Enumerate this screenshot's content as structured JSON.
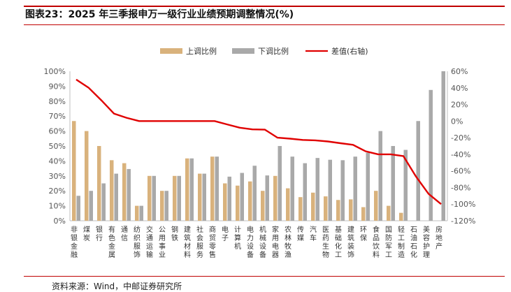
{
  "figure": {
    "title": "图表23：2025 年三季报申万一级行业业绩预期调整情况(%)",
    "source": "资料来源：Wind，中邮证券研究所"
  },
  "chart_data": {
    "type": "bar",
    "legend": {
      "placement": "top-center",
      "items": [
        "上调比例",
        "下调比例",
        "差值(右轴)"
      ]
    },
    "categories": [
      "非银金融",
      "煤炭",
      "银行",
      "有色金属",
      "通信",
      "纺织服饰",
      "交通运输",
      "公用事业",
      "钢铁",
      "建筑材料",
      "社会服务",
      "商贸零售",
      "电子",
      "计算机",
      "电力设备",
      "机械设备",
      "家用电器",
      "农林牧渔",
      "传媒",
      "汽车",
      "医药生物",
      "基础化工",
      "建筑装饰",
      "环保",
      "食品饮料",
      "国防军工",
      "轻工制造",
      "石油石化",
      "美容护理",
      "房地产"
    ],
    "series": [
      {
        "name": "上调比例",
        "axis": "left",
        "color": "#d9b27c",
        "values": [
          66.7,
          60,
          50,
          40.5,
          38.5,
          10,
          30,
          20,
          30,
          41.7,
          31.5,
          42.9,
          25,
          23.5,
          26.3,
          20,
          30,
          21.7,
          15.8,
          18.8,
          16.3,
          13.9,
          14.3,
          9.1,
          20,
          10,
          5.3,
          0,
          0,
          0
        ]
      },
      {
        "name": "下调比例",
        "axis": "left",
        "color": "#a9a9a9",
        "values": [
          16.7,
          20,
          25,
          31.5,
          34.6,
          10,
          30,
          20,
          30,
          41.7,
          31.5,
          42.9,
          29.5,
          32,
          36.8,
          30.3,
          50,
          42.9,
          38.5,
          42,
          40.8,
          40.5,
          42.9,
          45.5,
          60,
          50,
          47.4,
          66.7,
          87.5,
          100
        ]
      },
      {
        "name": "差值(右轴)",
        "axis": "right",
        "color": "#e00000",
        "type": "line",
        "values": [
          50,
          40,
          25,
          9,
          4,
          0,
          0,
          0,
          0,
          0,
          0,
          0,
          -4,
          -8,
          -10,
          -10.3,
          -20,
          -21.2,
          -22.7,
          -23.2,
          -24.5,
          -26.6,
          -28.6,
          -36.4,
          -40,
          -40,
          -42.1,
          -66.7,
          -87.5,
          -100
        ]
      }
    ],
    "ylim_left": [
      0,
      100
    ],
    "yticks_left": [
      "0%",
      "10%",
      "20%",
      "30%",
      "40%",
      "50%",
      "60%",
      "70%",
      "80%",
      "90%",
      "100%"
    ],
    "ylim_right": [
      -120,
      60
    ],
    "yticks_right": [
      "-120%",
      "-100%",
      "-80%",
      "-60%",
      "-40%",
      "-20%",
      "0%",
      "20%",
      "40%",
      "60%"
    ],
    "grid": false
  }
}
